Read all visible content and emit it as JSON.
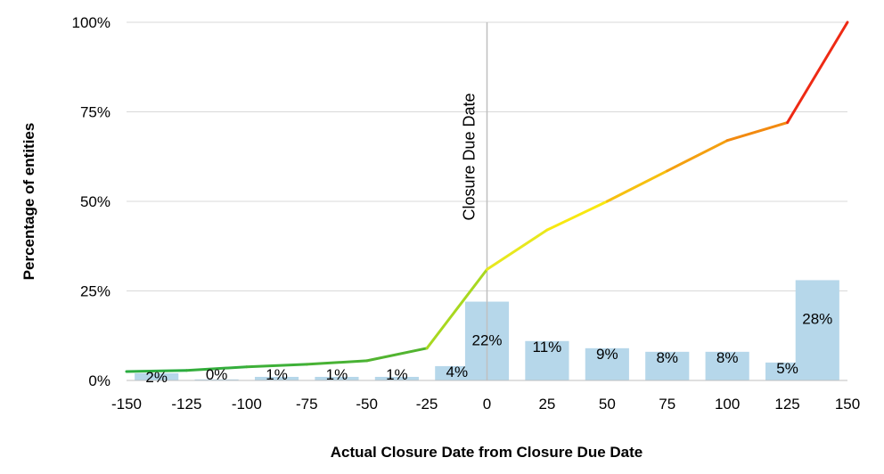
{
  "chart_data": {
    "type": "bar",
    "title": "",
    "xlabel": "Actual Closure Date from Closure Due Date",
    "ylabel": "Percentage of entities",
    "x_ticks": [
      -150,
      -125,
      -100,
      -75,
      -50,
      -25,
      0,
      25,
      50,
      75,
      100,
      125,
      150
    ],
    "x_tick_labels": [
      "-150",
      "-125",
      "-100",
      "-75",
      "-50",
      "-25",
      "0",
      "25",
      "50",
      "75",
      "100",
      "125",
      "150"
    ],
    "xlim": [
      -150,
      150
    ],
    "ylim": [
      0,
      100
    ],
    "y_ticks": [
      0,
      25,
      50,
      75,
      100
    ],
    "y_tick_labels": [
      "0%",
      "25%",
      "50%",
      "75%",
      "100%"
    ],
    "grid": "horizontal",
    "legend": "none",
    "bars": {
      "centers": [
        -137.5,
        -112.5,
        -87.5,
        -62.5,
        -37.5,
        -12.5,
        0,
        25,
        50,
        75,
        100,
        125,
        137.5
      ],
      "values": [
        2,
        0.3,
        1,
        1,
        1,
        4,
        22,
        11,
        9,
        8,
        8,
        5,
        28
      ],
      "labels": [
        "2%",
        "0%",
        "1%",
        "1%",
        "1%",
        "4%",
        "22%",
        "11%",
        "9%",
        "8%",
        "8%",
        "5%",
        "28%"
      ],
      "color": "#b6d7ea"
    },
    "cumulative_line": {
      "x": [
        -150,
        -125,
        -100,
        -75,
        -50,
        -25,
        0,
        25,
        50,
        75,
        100,
        125,
        150
      ],
      "y": [
        2.5,
        2.8,
        3.8,
        4.5,
        5.5,
        9,
        31,
        42,
        50,
        58.5,
        67,
        72,
        100
      ],
      "colors": [
        "#22aa44",
        "#2aac40",
        "#34ae3c",
        "#3eb038",
        "#48b234",
        "#52b430",
        "#a8d820",
        "#e8e81e",
        "#f8e810",
        "#f6c010",
        "#f4a010",
        "#f28a10",
        "#ee2a14"
      ]
    },
    "reference_line": {
      "x": 0,
      "label": "Closure Due Date"
    }
  }
}
